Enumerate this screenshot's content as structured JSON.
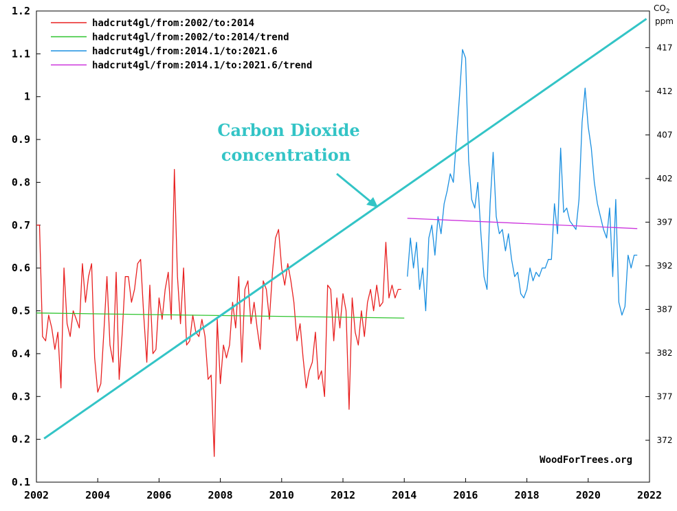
{
  "chart_data": {
    "type": "line",
    "title": "",
    "xlabel": "",
    "ylabel": "",
    "xlim": [
      2002,
      2022
    ],
    "ylim": [
      0.1,
      1.2
    ],
    "y2lim": [
      367.2,
      421.2
    ],
    "x_ticks": [
      "2002",
      "2004",
      "2006",
      "2008",
      "2010",
      "2012",
      "2014",
      "2016",
      "2018",
      "2020",
      "2022"
    ],
    "y_ticks": [
      "0.1",
      "0.2",
      "0.3",
      "0.4",
      "0.5",
      "0.6",
      "0.7",
      "0.8",
      "0.9",
      "1",
      "1.1",
      "1.2"
    ],
    "y2_ticks": [
      "372",
      "377",
      "382",
      "387",
      "392",
      "397",
      "402",
      "407",
      "412",
      "417"
    ],
    "y2_title": "CO",
    "y2_title_sub": "2",
    "y2_unit": "ppm",
    "grid": false,
    "legend_position": "top-left",
    "annotation": {
      "line1": "Carbon Dioxide",
      "line2": "concentration"
    },
    "watermark": "WoodForTrees.org",
    "co2_line": {
      "color": "#33c4c6",
      "x": [
        2002.25,
        2021.9
      ],
      "y2": [
        372.2,
        420.3
      ]
    },
    "series": [
      {
        "name": "hadcrut4gl/from:2002/to:2014",
        "color": "#e82020",
        "x": [
          2002.0,
          2002.1,
          2002.2,
          2002.3,
          2002.4,
          2002.5,
          2002.6,
          2002.7,
          2002.8,
          2002.9,
          2003.0,
          2003.1,
          2003.2,
          2003.3,
          2003.4,
          2003.5,
          2003.6,
          2003.7,
          2003.8,
          2003.9,
          2004.0,
          2004.1,
          2004.2,
          2004.3,
          2004.4,
          2004.5,
          2004.6,
          2004.7,
          2004.8,
          2004.9,
          2005.0,
          2005.1,
          2005.2,
          2005.3,
          2005.4,
          2005.5,
          2005.6,
          2005.7,
          2005.8,
          2005.9,
          2006.0,
          2006.1,
          2006.2,
          2006.3,
          2006.4,
          2006.5,
          2006.6,
          2006.7,
          2006.8,
          2006.9,
          2007.0,
          2007.1,
          2007.2,
          2007.3,
          2007.4,
          2007.5,
          2007.6,
          2007.7,
          2007.8,
          2007.9,
          2008.0,
          2008.1,
          2008.2,
          2008.3,
          2008.4,
          2008.5,
          2008.6,
          2008.7,
          2008.8,
          2008.9,
          2009.0,
          2009.1,
          2009.2,
          2009.3,
          2009.4,
          2009.5,
          2009.6,
          2009.7,
          2009.8,
          2009.9,
          2010.0,
          2010.1,
          2010.2,
          2010.3,
          2010.4,
          2010.5,
          2010.6,
          2010.7,
          2010.8,
          2010.9,
          2011.0,
          2011.1,
          2011.2,
          2011.3,
          2011.4,
          2011.5,
          2011.6,
          2011.7,
          2011.8,
          2011.9,
          2012.0,
          2012.1,
          2012.2,
          2012.3,
          2012.4,
          2012.5,
          2012.6,
          2012.7,
          2012.8,
          2012.9,
          2013.0,
          2013.1,
          2013.2,
          2013.3,
          2013.4,
          2013.5,
          2013.6,
          2013.7,
          2013.8,
          2013.9
        ],
        "values": [
          0.7,
          0.7,
          0.44,
          0.43,
          0.49,
          0.46,
          0.41,
          0.45,
          0.32,
          0.6,
          0.47,
          0.44,
          0.5,
          0.48,
          0.46,
          0.61,
          0.52,
          0.58,
          0.61,
          0.39,
          0.31,
          0.33,
          0.45,
          0.58,
          0.42,
          0.38,
          0.59,
          0.34,
          0.45,
          0.58,
          0.58,
          0.52,
          0.55,
          0.61,
          0.62,
          0.49,
          0.38,
          0.56,
          0.4,
          0.41,
          0.53,
          0.48,
          0.55,
          0.59,
          0.48,
          0.83,
          0.58,
          0.47,
          0.6,
          0.42,
          0.43,
          0.49,
          0.45,
          0.44,
          0.48,
          0.44,
          0.34,
          0.35,
          0.16,
          0.48,
          0.33,
          0.42,
          0.39,
          0.42,
          0.52,
          0.46,
          0.58,
          0.38,
          0.55,
          0.57,
          0.47,
          0.52,
          0.46,
          0.41,
          0.57,
          0.55,
          0.48,
          0.59,
          0.67,
          0.69,
          0.6,
          0.56,
          0.61,
          0.57,
          0.52,
          0.43,
          0.47,
          0.39,
          0.32,
          0.36,
          0.38,
          0.45,
          0.34,
          0.36,
          0.3,
          0.56,
          0.55,
          0.43,
          0.53,
          0.46,
          0.54,
          0.5,
          0.27,
          0.53,
          0.45,
          0.42,
          0.5,
          0.44,
          0.52,
          0.55,
          0.5,
          0.56,
          0.51,
          0.52,
          0.66,
          0.53,
          0.56,
          0.53,
          0.55,
          0.55
        ]
      },
      {
        "name": "hadcrut4gl/from:2002/to:2014/trend",
        "color": "#2ec42e",
        "x": [
          2002.0,
          2014.0
        ],
        "values": [
          0.495,
          0.483
        ]
      },
      {
        "name": "hadcrut4gl/from:2014.1/to:2021.6",
        "color": "#1a8fe0",
        "x": [
          2014.1,
          2014.2,
          2014.3,
          2014.4,
          2014.5,
          2014.6,
          2014.7,
          2014.8,
          2014.9,
          2015.0,
          2015.1,
          2015.2,
          2015.3,
          2015.4,
          2015.5,
          2015.6,
          2015.7,
          2015.8,
          2015.9,
          2016.0,
          2016.1,
          2016.2,
          2016.3,
          2016.4,
          2016.5,
          2016.6,
          2016.7,
          2016.8,
          2016.9,
          2017.0,
          2017.1,
          2017.2,
          2017.3,
          2017.4,
          2017.5,
          2017.6,
          2017.7,
          2017.8,
          2017.9,
          2018.0,
          2018.1,
          2018.2,
          2018.3,
          2018.4,
          2018.5,
          2018.6,
          2018.7,
          2018.8,
          2018.9,
          2019.0,
          2019.1,
          2019.2,
          2019.3,
          2019.4,
          2019.5,
          2019.6,
          2019.7,
          2019.8,
          2019.9,
          2020.0,
          2020.1,
          2020.2,
          2020.3,
          2020.4,
          2020.5,
          2020.6,
          2020.7,
          2020.8,
          2020.9,
          2021.0,
          2021.1,
          2021.2,
          2021.3,
          2021.4,
          2021.5,
          2021.6
        ],
        "values": [
          0.58,
          0.67,
          0.6,
          0.66,
          0.55,
          0.6,
          0.5,
          0.67,
          0.7,
          0.63,
          0.72,
          0.68,
          0.75,
          0.78,
          0.82,
          0.8,
          0.9,
          1.0,
          1.11,
          1.09,
          0.85,
          0.76,
          0.74,
          0.8,
          0.68,
          0.58,
          0.55,
          0.75,
          0.87,
          0.72,
          0.68,
          0.69,
          0.64,
          0.68,
          0.62,
          0.58,
          0.59,
          0.54,
          0.53,
          0.55,
          0.6,
          0.57,
          0.59,
          0.58,
          0.6,
          0.6,
          0.62,
          0.62,
          0.75,
          0.68,
          0.88,
          0.73,
          0.74,
          0.71,
          0.7,
          0.69,
          0.76,
          0.94,
          1.02,
          0.93,
          0.88,
          0.8,
          0.75,
          0.72,
          0.69,
          0.67,
          0.74,
          0.58,
          0.76,
          0.52,
          0.49,
          0.51,
          0.63,
          0.6,
          0.63,
          0.63
        ]
      },
      {
        "name": "hadcrut4gl/from:2014.1/to:2021.6/trend",
        "color": "#cc33dd",
        "x": [
          2014.1,
          2021.6
        ],
        "values": [
          0.716,
          0.692
        ]
      }
    ]
  }
}
